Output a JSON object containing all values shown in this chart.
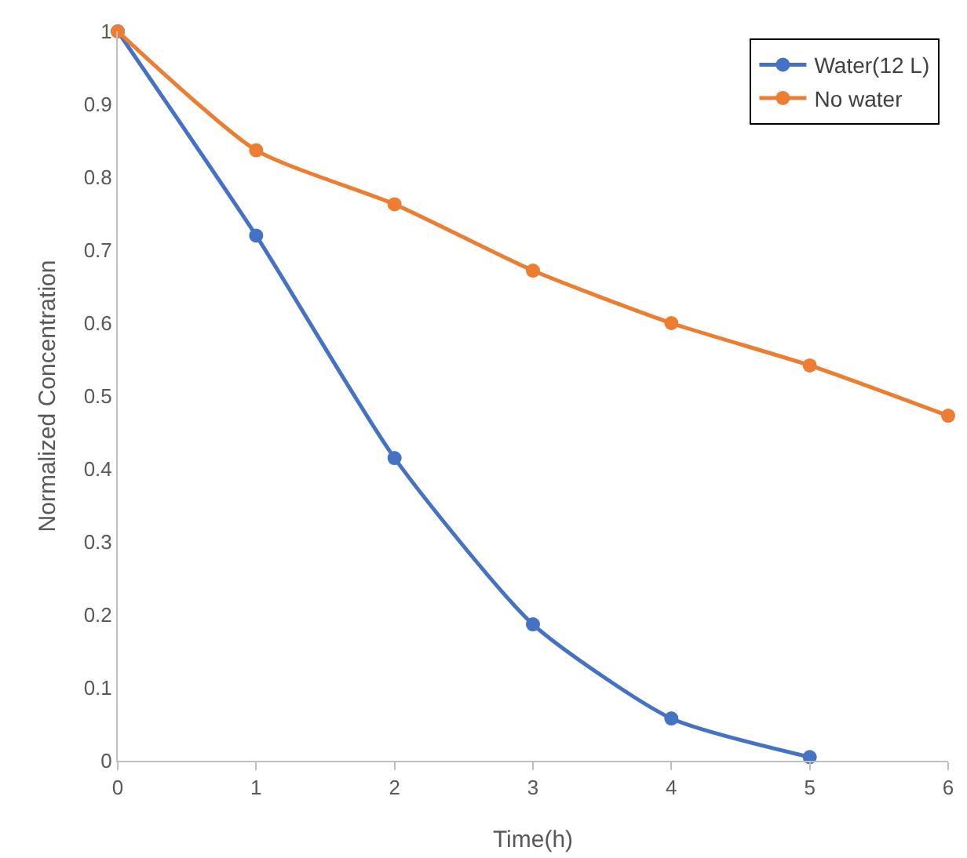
{
  "chart_data": {
    "type": "line",
    "xlabel": "Time(h)",
    "ylabel": "Normalized Concentration",
    "x": [
      0,
      1,
      2,
      3,
      4,
      5,
      6
    ],
    "series": [
      {
        "name": "Water(12 L)",
        "color": "#4472c4",
        "x": [
          0,
          1,
          2,
          3,
          4,
          5
        ],
        "values": [
          1,
          0.72,
          0.415,
          0.187,
          0.058,
          0.005
        ]
      },
      {
        "name": "No water",
        "color": "#ed7d31",
        "values": [
          1,
          0.837,
          0.763,
          0.672,
          0.6,
          0.542,
          0.473
        ]
      }
    ],
    "xlim": [
      0,
      6
    ],
    "xticks": [
      0,
      1,
      2,
      3,
      4,
      5,
      6
    ],
    "ylim": [
      0,
      1
    ],
    "yticks": [
      0,
      0.1,
      0.2,
      0.3,
      0.4,
      0.5,
      0.6,
      0.7,
      0.8,
      0.9,
      1
    ],
    "grid": false,
    "legend": "top right",
    "marker": "circle",
    "line_style": "solid"
  }
}
